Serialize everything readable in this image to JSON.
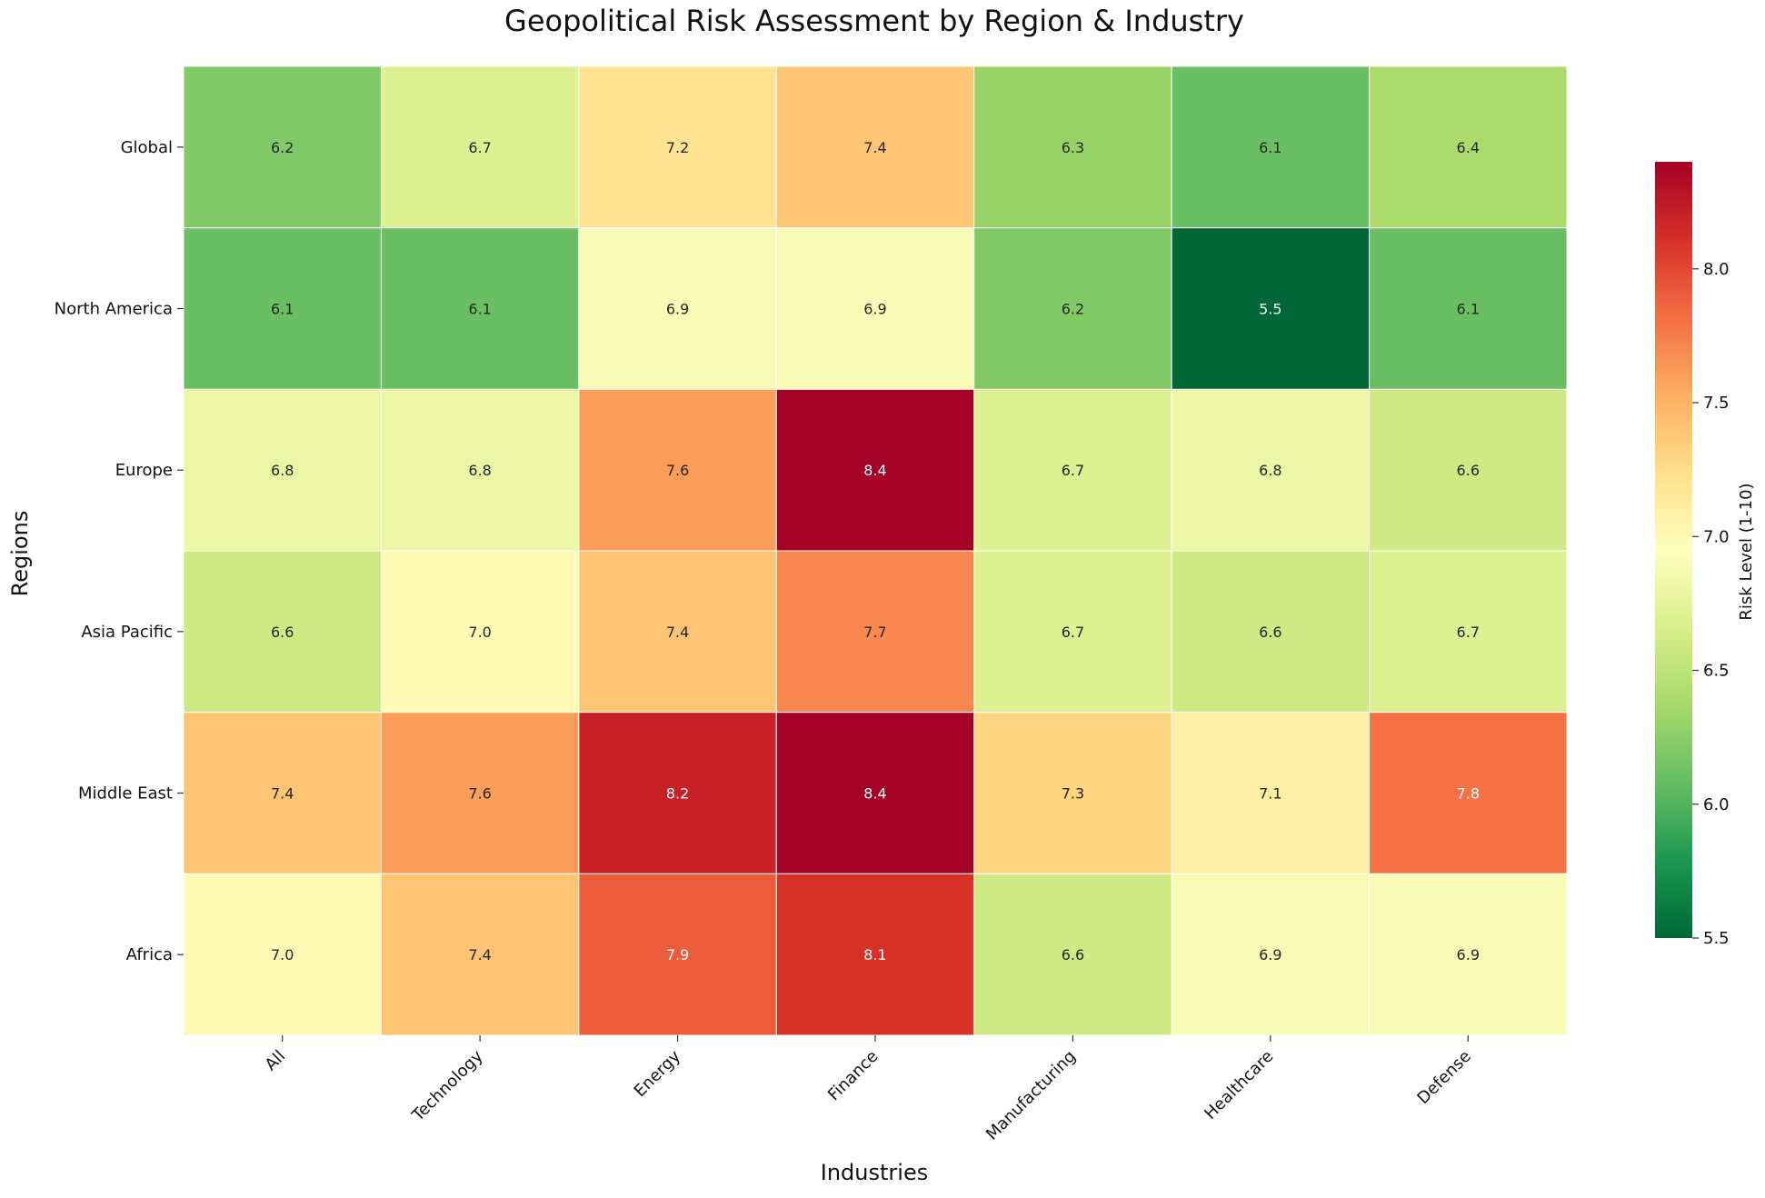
{
  "chart_data": {
    "type": "heatmap",
    "title": "Geopolitical Risk Assessment by Region & Industry",
    "xlabel": "Industries",
    "ylabel": "Regions",
    "columns": [
      "All",
      "Technology",
      "Energy",
      "Finance",
      "Manufacturing",
      "Healthcare",
      "Defense"
    ],
    "rows": [
      "Global",
      "North America",
      "Europe",
      "Asia Pacific",
      "Middle East",
      "Africa"
    ],
    "values": [
      [
        6.2,
        6.7,
        7.2,
        7.4,
        6.3,
        6.1,
        6.4
      ],
      [
        6.1,
        6.1,
        6.9,
        6.9,
        6.2,
        5.5,
        6.1
      ],
      [
        6.8,
        6.8,
        7.6,
        8.4,
        6.7,
        6.8,
        6.6
      ],
      [
        6.6,
        7.0,
        7.4,
        7.7,
        6.7,
        6.6,
        6.7
      ],
      [
        7.4,
        7.6,
        8.2,
        8.4,
        7.3,
        7.1,
        7.8
      ],
      [
        7.0,
        7.4,
        7.9,
        8.1,
        6.6,
        6.9,
        6.9
      ]
    ],
    "value_format": "1 decimal",
    "colormap": "RdYlGn_r",
    "vmin": 5.5,
    "vmax": 8.4,
    "colorbar": {
      "label": "Risk Level (1-10)",
      "ticks": [
        "5.5",
        "6.0",
        "6.5",
        "7.0",
        "7.5",
        "8.0"
      ],
      "placement": "right"
    },
    "grid": false
  }
}
